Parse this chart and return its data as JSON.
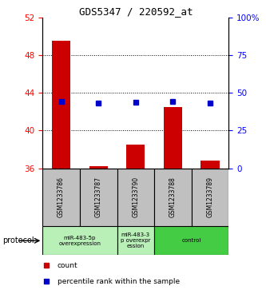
{
  "title": "GDS5347 / 220592_at",
  "samples": [
    "GSM1233786",
    "GSM1233787",
    "GSM1233790",
    "GSM1233788",
    "GSM1233789"
  ],
  "count_values": [
    49.5,
    36.2,
    38.5,
    42.5,
    36.8
  ],
  "percentile_values": [
    44.5,
    43.3,
    43.9,
    44.0,
    43.4
  ],
  "ylim_left": [
    36,
    52
  ],
  "ylim_right": [
    0,
    100
  ],
  "yticks_left": [
    36,
    40,
    44,
    48,
    52
  ],
  "yticks_right": [
    0,
    25,
    50,
    75,
    100
  ],
  "ytick_labels_right": [
    "0",
    "25",
    "50",
    "75",
    "100%"
  ],
  "bar_color": "#cc0000",
  "dot_color": "#0000cc",
  "bar_bottom": 36,
  "group_boundaries": [
    {
      "start": 0,
      "end": 2,
      "label": "miR-483-5p\noverexpression",
      "color": "#b8f0b8"
    },
    {
      "start": 2,
      "end": 3,
      "label": "miR-483-3\np overexpr\nession",
      "color": "#b8f0b8"
    },
    {
      "start": 3,
      "end": 5,
      "label": "control",
      "color": "#44cc44"
    }
  ],
  "legend_items": [
    {
      "color": "#cc0000",
      "label": "count"
    },
    {
      "color": "#0000cc",
      "label": "percentile rank within the sample"
    }
  ],
  "label_area_color": "#c0c0c0",
  "dotted_gridlines": [
    40,
    44,
    48
  ]
}
